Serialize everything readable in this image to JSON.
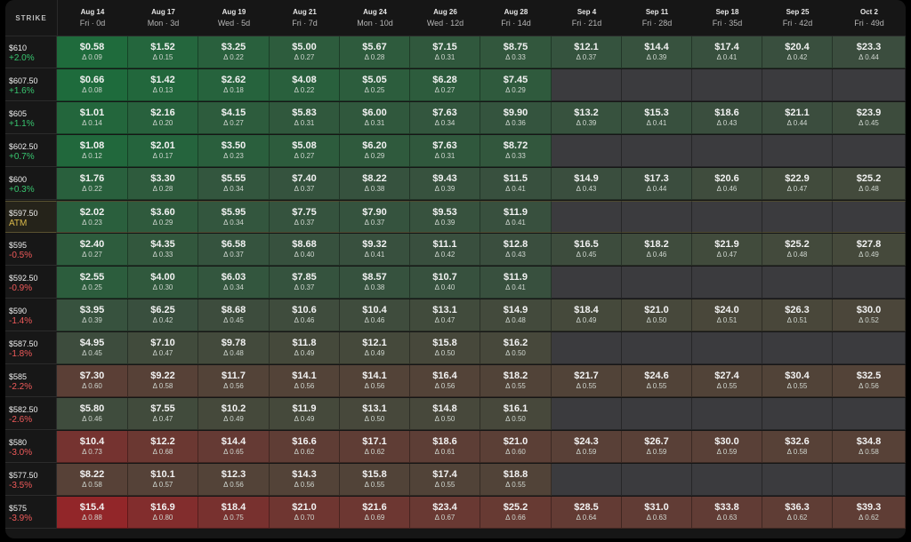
{
  "colors": {
    "positive": "#38c56f",
    "negative": "#f05a5a",
    "atm": "#d8b84a"
  },
  "header": {
    "strike_label": "STRIKE"
  },
  "expirations": [
    {
      "date": "Aug 14",
      "sub": "Fri · 0d"
    },
    {
      "date": "Aug 17",
      "sub": "Mon · 3d"
    },
    {
      "date": "Aug 19",
      "sub": "Wed · 5d"
    },
    {
      "date": "Aug 21",
      "sub": "Fri · 7d"
    },
    {
      "date": "Aug 24",
      "sub": "Mon · 10d"
    },
    {
      "date": "Aug 26",
      "sub": "Wed · 12d"
    },
    {
      "date": "Aug 28",
      "sub": "Fri · 14d"
    },
    {
      "date": "Sep 4",
      "sub": "Fri · 21d"
    },
    {
      "date": "Sep 11",
      "sub": "Fri · 28d"
    },
    {
      "date": "Sep 18",
      "sub": "Fri · 35d"
    },
    {
      "date": "Sep 25",
      "sub": "Fri · 42d"
    },
    {
      "date": "Oct 2",
      "sub": "Fri · 49d"
    }
  ],
  "rows": [
    {
      "strike": "$610",
      "change": "+2.0%",
      "cells": [
        [
          "$0.58",
          "Δ 0.09"
        ],
        [
          "$1.52",
          "Δ 0.15"
        ],
        [
          "$3.25",
          "Δ 0.22"
        ],
        [
          "$5.00",
          "Δ 0.27"
        ],
        [
          "$5.67",
          "Δ 0.28"
        ],
        [
          "$7.15",
          "Δ 0.31"
        ],
        [
          "$8.75",
          "Δ 0.33"
        ],
        [
          "$12.1",
          "Δ 0.37"
        ],
        [
          "$14.4",
          "Δ 0.39"
        ],
        [
          "$17.4",
          "Δ 0.41"
        ],
        [
          "$20.4",
          "Δ 0.42"
        ],
        [
          "$23.3",
          "Δ 0.44"
        ]
      ]
    },
    {
      "strike": "$607.50",
      "change": "+1.6%",
      "cells": [
        [
          "$0.66",
          "Δ 0.08"
        ],
        [
          "$1.42",
          "Δ 0.13"
        ],
        [
          "$2.62",
          "Δ 0.18"
        ],
        [
          "$4.08",
          "Δ 0.22"
        ],
        [
          "$5.05",
          "Δ 0.25"
        ],
        [
          "$6.28",
          "Δ 0.27"
        ],
        [
          "$7.45",
          "Δ 0.29"
        ],
        null,
        null,
        null,
        null,
        null
      ]
    },
    {
      "strike": "$605",
      "change": "+1.1%",
      "cells": [
        [
          "$1.01",
          "Δ 0.14"
        ],
        [
          "$2.16",
          "Δ 0.20"
        ],
        [
          "$4.15",
          "Δ 0.27"
        ],
        [
          "$5.83",
          "Δ 0.31"
        ],
        [
          "$6.00",
          "Δ 0.31"
        ],
        [
          "$7.63",
          "Δ 0.34"
        ],
        [
          "$9.90",
          "Δ 0.36"
        ],
        [
          "$13.2",
          "Δ 0.39"
        ],
        [
          "$15.3",
          "Δ 0.41"
        ],
        [
          "$18.6",
          "Δ 0.43"
        ],
        [
          "$21.1",
          "Δ 0.44"
        ],
        [
          "$23.9",
          "Δ 0.45"
        ]
      ]
    },
    {
      "strike": "$602.50",
      "change": "+0.7%",
      "cells": [
        [
          "$1.08",
          "Δ 0.12"
        ],
        [
          "$2.01",
          "Δ 0.17"
        ],
        [
          "$3.50",
          "Δ 0.23"
        ],
        [
          "$5.08",
          "Δ 0.27"
        ],
        [
          "$6.20",
          "Δ 0.29"
        ],
        [
          "$7.63",
          "Δ 0.31"
        ],
        [
          "$8.72",
          "Δ 0.33"
        ],
        null,
        null,
        null,
        null,
        null
      ]
    },
    {
      "strike": "$600",
      "change": "+0.3%",
      "cells": [
        [
          "$1.76",
          "Δ 0.22"
        ],
        [
          "$3.30",
          "Δ 0.28"
        ],
        [
          "$5.55",
          "Δ 0.34"
        ],
        [
          "$7.40",
          "Δ 0.37"
        ],
        [
          "$8.22",
          "Δ 0.38"
        ],
        [
          "$9.43",
          "Δ 0.39"
        ],
        [
          "$11.5",
          "Δ 0.41"
        ],
        [
          "$14.9",
          "Δ 0.43"
        ],
        [
          "$17.3",
          "Δ 0.44"
        ],
        [
          "$20.6",
          "Δ 0.46"
        ],
        [
          "$22.9",
          "Δ 0.47"
        ],
        [
          "$25.2",
          "Δ 0.48"
        ]
      ]
    },
    {
      "strike": "$597.50",
      "change": "ATM",
      "atm": true,
      "cells": [
        [
          "$2.02",
          "Δ 0.23"
        ],
        [
          "$3.60",
          "Δ 0.29"
        ],
        [
          "$5.95",
          "Δ 0.34"
        ],
        [
          "$7.75",
          "Δ 0.37"
        ],
        [
          "$7.90",
          "Δ 0.37"
        ],
        [
          "$9.53",
          "Δ 0.39"
        ],
        [
          "$11.9",
          "Δ 0.41"
        ],
        null,
        null,
        null,
        null,
        null
      ]
    },
    {
      "strike": "$595",
      "change": "-0.5%",
      "cells": [
        [
          "$2.40",
          "Δ 0.27"
        ],
        [
          "$4.35",
          "Δ 0.33"
        ],
        [
          "$6.58",
          "Δ 0.37"
        ],
        [
          "$8.68",
          "Δ 0.40"
        ],
        [
          "$9.32",
          "Δ 0.41"
        ],
        [
          "$11.1",
          "Δ 0.42"
        ],
        [
          "$12.8",
          "Δ 0.43"
        ],
        [
          "$16.5",
          "Δ 0.45"
        ],
        [
          "$18.2",
          "Δ 0.46"
        ],
        [
          "$21.9",
          "Δ 0.47"
        ],
        [
          "$25.2",
          "Δ 0.48"
        ],
        [
          "$27.8",
          "Δ 0.49"
        ]
      ]
    },
    {
      "strike": "$592.50",
      "change": "-0.9%",
      "cells": [
        [
          "$2.55",
          "Δ 0.25"
        ],
        [
          "$4.00",
          "Δ 0.30"
        ],
        [
          "$6.03",
          "Δ 0.34"
        ],
        [
          "$7.85",
          "Δ 0.37"
        ],
        [
          "$8.57",
          "Δ 0.38"
        ],
        [
          "$10.7",
          "Δ 0.40"
        ],
        [
          "$11.9",
          "Δ 0.41"
        ],
        null,
        null,
        null,
        null,
        null
      ]
    },
    {
      "strike": "$590",
      "change": "-1.4%",
      "cells": [
        [
          "$3.95",
          "Δ 0.39"
        ],
        [
          "$6.25",
          "Δ 0.42"
        ],
        [
          "$8.68",
          "Δ 0.45"
        ],
        [
          "$10.6",
          "Δ 0.46"
        ],
        [
          "$10.4",
          "Δ 0.46"
        ],
        [
          "$13.1",
          "Δ 0.47"
        ],
        [
          "$14.9",
          "Δ 0.48"
        ],
        [
          "$18.4",
          "Δ 0.49"
        ],
        [
          "$21.0",
          "Δ 0.50"
        ],
        [
          "$24.0",
          "Δ 0.51"
        ],
        [
          "$26.3",
          "Δ 0.51"
        ],
        [
          "$30.0",
          "Δ 0.52"
        ]
      ]
    },
    {
      "strike": "$587.50",
      "change": "-1.8%",
      "cells": [
        [
          "$4.95",
          "Δ 0.45"
        ],
        [
          "$7.10",
          "Δ 0.47"
        ],
        [
          "$9.78",
          "Δ 0.48"
        ],
        [
          "$11.8",
          "Δ 0.49"
        ],
        [
          "$12.1",
          "Δ 0.49"
        ],
        [
          "$15.8",
          "Δ 0.50"
        ],
        [
          "$16.2",
          "Δ 0.50"
        ],
        null,
        null,
        null,
        null,
        null
      ]
    },
    {
      "strike": "$585",
      "change": "-2.2%",
      "cells": [
        [
          "$7.30",
          "Δ 0.60"
        ],
        [
          "$9.22",
          "Δ 0.58"
        ],
        [
          "$11.7",
          "Δ 0.56"
        ],
        [
          "$14.1",
          "Δ 0.56"
        ],
        [
          "$14.1",
          "Δ 0.56"
        ],
        [
          "$16.4",
          "Δ 0.56"
        ],
        [
          "$18.2",
          "Δ 0.55"
        ],
        [
          "$21.7",
          "Δ 0.55"
        ],
        [
          "$24.6",
          "Δ 0.55"
        ],
        [
          "$27.4",
          "Δ 0.55"
        ],
        [
          "$30.4",
          "Δ 0.55"
        ],
        [
          "$32.5",
          "Δ 0.56"
        ]
      ]
    },
    {
      "strike": "$582.50",
      "change": "-2.6%",
      "cells": [
        [
          "$5.80",
          "Δ 0.46"
        ],
        [
          "$7.55",
          "Δ 0.47"
        ],
        [
          "$10.2",
          "Δ 0.49"
        ],
        [
          "$11.9",
          "Δ 0.49"
        ],
        [
          "$13.1",
          "Δ 0.50"
        ],
        [
          "$14.8",
          "Δ 0.50"
        ],
        [
          "$16.1",
          "Δ 0.50"
        ],
        null,
        null,
        null,
        null,
        null
      ]
    },
    {
      "strike": "$580",
      "change": "-3.0%",
      "cells": [
        [
          "$10.4",
          "Δ 0.73"
        ],
        [
          "$12.2",
          "Δ 0.68"
        ],
        [
          "$14.4",
          "Δ 0.65"
        ],
        [
          "$16.6",
          "Δ 0.62"
        ],
        [
          "$17.1",
          "Δ 0.62"
        ],
        [
          "$18.6",
          "Δ 0.61"
        ],
        [
          "$21.0",
          "Δ 0.60"
        ],
        [
          "$24.3",
          "Δ 0.59"
        ],
        [
          "$26.7",
          "Δ 0.59"
        ],
        [
          "$30.0",
          "Δ 0.59"
        ],
        [
          "$32.6",
          "Δ 0.58"
        ],
        [
          "$34.8",
          "Δ 0.58"
        ]
      ]
    },
    {
      "strike": "$577.50",
      "change": "-3.5%",
      "cells": [
        [
          "$8.22",
          "Δ 0.58"
        ],
        [
          "$10.1",
          "Δ 0.57"
        ],
        [
          "$12.3",
          "Δ 0.56"
        ],
        [
          "$14.3",
          "Δ 0.56"
        ],
        [
          "$15.8",
          "Δ 0.55"
        ],
        [
          "$17.4",
          "Δ 0.55"
        ],
        [
          "$18.8",
          "Δ 0.55"
        ],
        null,
        null,
        null,
        null,
        null
      ]
    },
    {
      "strike": "$575",
      "change": "-3.9%",
      "cells": [
        [
          "$15.4",
          "Δ 0.88"
        ],
        [
          "$16.9",
          "Δ 0.80"
        ],
        [
          "$18.4",
          "Δ 0.75"
        ],
        [
          "$21.0",
          "Δ 0.70"
        ],
        [
          "$21.6",
          "Δ 0.69"
        ],
        [
          "$23.4",
          "Δ 0.67"
        ],
        [
          "$25.2",
          "Δ 0.66"
        ],
        [
          "$28.5",
          "Δ 0.64"
        ],
        [
          "$31.0",
          "Δ 0.63"
        ],
        [
          "$33.8",
          "Δ 0.63"
        ],
        [
          "$36.3",
          "Δ 0.62"
        ],
        [
          "$39.3",
          "Δ 0.62"
        ]
      ]
    }
  ]
}
